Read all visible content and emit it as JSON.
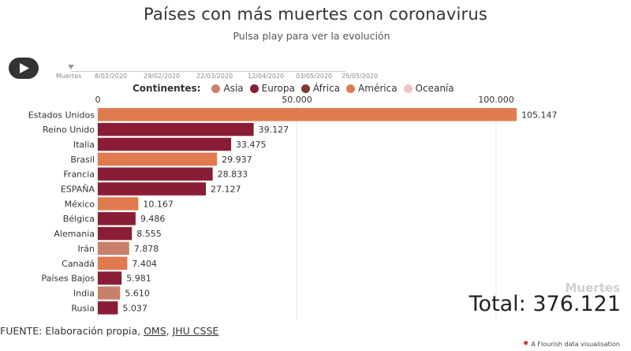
{
  "header": {
    "title": "Países con más muertes con coronavirus",
    "subtitle": "Pulsa play para ver la evolución"
  },
  "timeline": {
    "play_icon": "play-icon",
    "labels": [
      "Muertes",
      "8/02/2020",
      "29/02/2020",
      "22/03/2020",
      "12/04/2020",
      "03/05/2020",
      "25/05/2020"
    ]
  },
  "legend": {
    "title": "Continentes:",
    "items": [
      {
        "label": "Asia",
        "color": "#c9806a"
      },
      {
        "label": "Europa",
        "color": "#8a1d35"
      },
      {
        "label": "África",
        "color": "#7f3a2f"
      },
      {
        "label": "América",
        "color": "#e07a4f"
      },
      {
        "label": "Oceanía",
        "color": "#f2c4c4"
      }
    ]
  },
  "chart_data": {
    "type": "bar",
    "orientation": "horizontal",
    "x_ticks": [
      0,
      50000,
      100000
    ],
    "x_tick_labels": [
      "0",
      "50.000",
      "100.000"
    ],
    "xlim": [
      0,
      105147
    ],
    "grid": true,
    "categories": [
      "Estados Unidos",
      "Reino Unido",
      "Italia",
      "Brasil",
      "Francia",
      "ESPAÑA",
      "México",
      "Bélgica",
      "Alemania",
      "Irán",
      "Canadá",
      "Países Bajos",
      "India",
      "Rusia"
    ],
    "values": [
      105147,
      39127,
      33475,
      29937,
      28833,
      27127,
      10167,
      9486,
      8555,
      7878,
      7404,
      5981,
      5610,
      5037
    ],
    "value_labels": [
      "105.147",
      "39.127",
      "33.475",
      "29.937",
      "28.833",
      "27.127",
      "10.167",
      "9.486",
      "8.555",
      "7.878",
      "7.404",
      "5.981",
      "5.610",
      "5.037"
    ],
    "continents": [
      "América",
      "Europa",
      "Europa",
      "América",
      "Europa",
      "Europa",
      "América",
      "Europa",
      "Europa",
      "Asia",
      "América",
      "Europa",
      "Asia",
      "Europa"
    ]
  },
  "summary": {
    "big_label": "Muertes",
    "total": "Total: 376.121"
  },
  "footer": {
    "source_prefix": "FUENTE: Elaboración propia, ",
    "link1": "OMS",
    "separator": ", ",
    "link2": "JHU CSSE",
    "credit": "A Flourish data visualisation"
  }
}
